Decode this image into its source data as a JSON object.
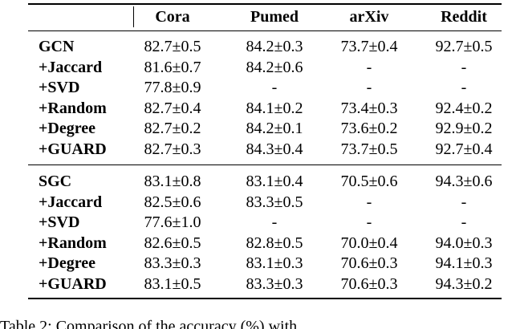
{
  "table": {
    "columns": [
      "Cora",
      "Pumed",
      "arXiv",
      "Reddit"
    ],
    "groups": [
      {
        "rows": [
          [
            "GCN",
            "82.7±0.5",
            "84.2±0.3",
            "73.7±0.4",
            "92.7±0.5"
          ],
          [
            "+Jaccard",
            "81.6±0.7",
            "84.2±0.6",
            "-",
            "-"
          ],
          [
            "+SVD",
            "77.8±0.9",
            "-",
            "-",
            "-"
          ],
          [
            "+Random",
            "82.7±0.4",
            "84.1±0.2",
            "73.4±0.3",
            "92.4±0.2"
          ],
          [
            "+Degree",
            "82.7±0.2",
            "84.2±0.1",
            "73.6±0.2",
            "92.9±0.2"
          ],
          [
            "+GUARD",
            "82.7±0.3",
            "84.3±0.4",
            "73.7±0.5",
            "92.7±0.4"
          ]
        ]
      },
      {
        "rows": [
          [
            "SGC",
            "83.1±0.8",
            "83.1±0.4",
            "70.5±0.6",
            "94.3±0.6"
          ],
          [
            "+Jaccard",
            "82.5±0.6",
            "83.3±0.5",
            "-",
            "-"
          ],
          [
            "+SVD",
            "77.6±1.0",
            "-",
            "-",
            "-"
          ],
          [
            "+Random",
            "82.6±0.5",
            "82.8±0.5",
            "70.0±0.4",
            "94.0±0.3"
          ],
          [
            "+Degree",
            "83.3±0.3",
            "83.1±0.3",
            "70.6±0.3",
            "94.1±0.3"
          ],
          [
            "+GUARD",
            "83.1±0.5",
            "83.3±0.3",
            "70.6±0.3",
            "94.3±0.2"
          ]
        ]
      }
    ]
  },
  "caption": "Table 2: Comparison of the accuracy (%) with"
}
